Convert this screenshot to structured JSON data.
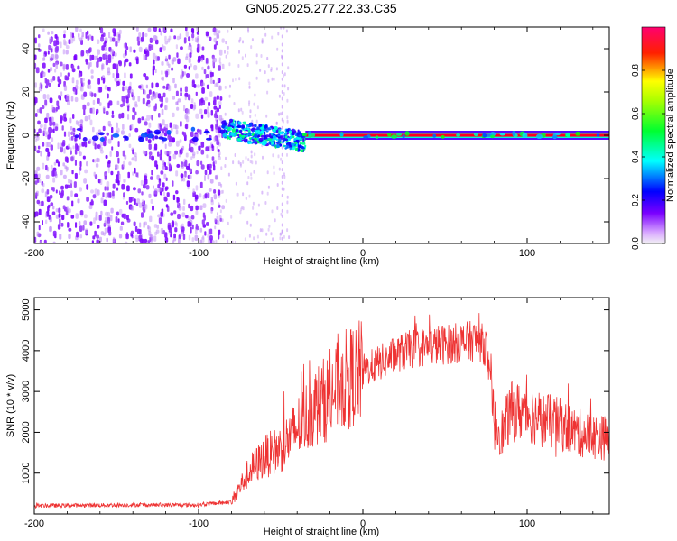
{
  "chart_data": [
    {
      "type": "heatmap",
      "title": "GN05.2025.277.22.33.C35",
      "xlabel": "Height of straight line (km)",
      "ylabel": "Frequency (Hz)",
      "xlim": [
        -200,
        150
      ],
      "ylim": [
        -50,
        50
      ],
      "xticks": [
        -200,
        -100,
        0,
        100
      ],
      "yticks": [
        -40,
        -20,
        0,
        20,
        40
      ],
      "colorbar": {
        "label": "Normalized spectral amplitude",
        "range": [
          0,
          1
        ],
        "ticks": [
          0.0,
          0.2,
          0.4,
          0.6,
          0.8
        ],
        "colormap": [
          "#f0f0f0",
          "#7a00ff",
          "#0000ff",
          "#00ffff",
          "#00ff00",
          "#ffff00",
          "#ff0000",
          "#ff0060"
        ]
      },
      "features": [
        {
          "name": "diffuse-noise",
          "x_range": [
            -200,
            -85
          ],
          "f_range": [
            -50,
            50
          ],
          "amplitude": 0.1
        },
        {
          "name": "onset-band",
          "x_range": [
            -85,
            -35
          ],
          "f_range": [
            -5,
            6
          ],
          "amplitude": 0.4
        },
        {
          "name": "carrier-line",
          "x_range": [
            -35,
            150
          ],
          "f_center": 0,
          "amplitude": 0.9
        }
      ]
    },
    {
      "type": "line",
      "xlabel": "Height of straight line (km)",
      "ylabel": "SNR (10 * v/v)",
      "xlim": [
        -200,
        150
      ],
      "ylim": [
        0,
        5300
      ],
      "xticks": [
        -200,
        -100,
        0,
        100
      ],
      "yticks": [
        1000,
        2000,
        3000,
        4000,
        5000
      ],
      "color": "#ee3333",
      "series": [
        {
          "name": "SNR envelope",
          "x": [
            -200,
            -150,
            -100,
            -80,
            -70,
            -60,
            -50,
            -40,
            -30,
            -20,
            -10,
            0,
            10,
            20,
            30,
            40,
            50,
            60,
            70,
            75,
            80,
            85,
            90,
            100,
            110,
            120,
            130,
            140,
            150
          ],
          "values": [
            200,
            220,
            220,
            300,
            1000,
            1400,
            1600,
            2100,
            2600,
            2900,
            3300,
            3500,
            3700,
            3900,
            4050,
            4100,
            4150,
            4200,
            4250,
            4100,
            2200,
            2000,
            2500,
            2500,
            2300,
            2200,
            2000,
            1900,
            1850
          ]
        }
      ]
    }
  ]
}
